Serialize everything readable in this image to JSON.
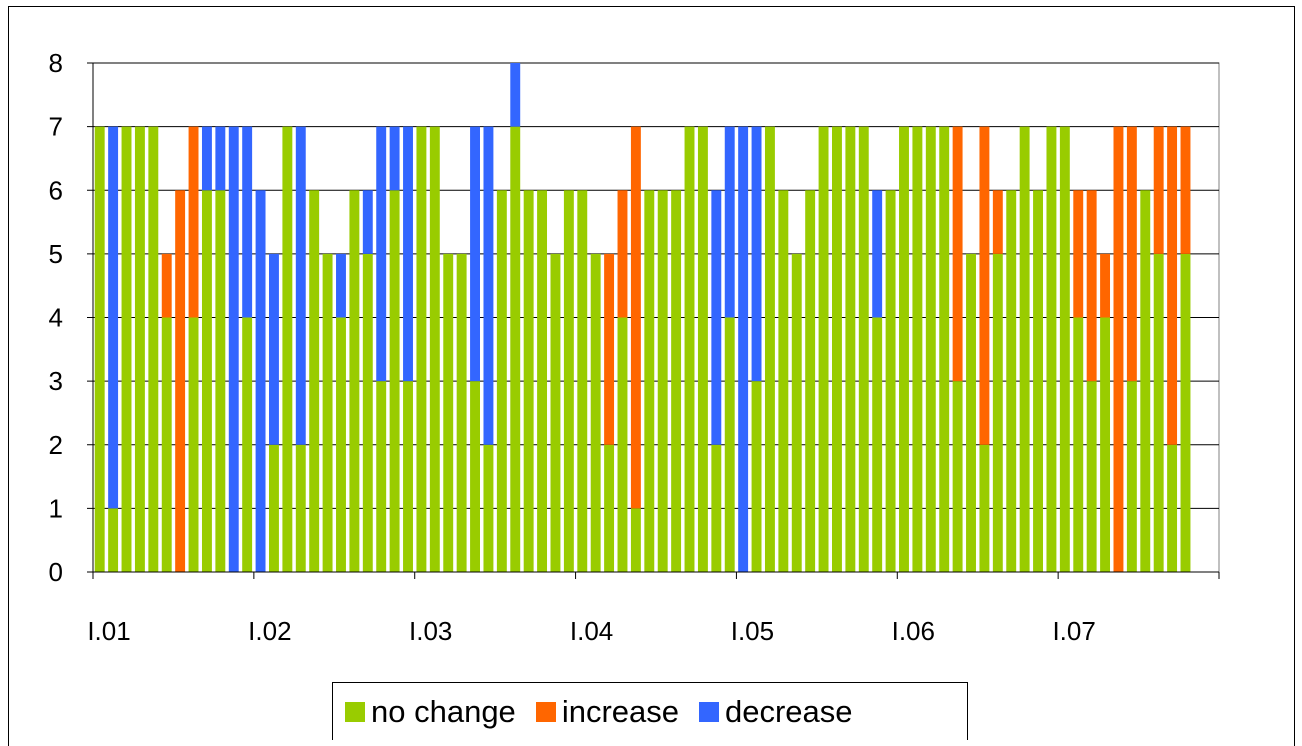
{
  "chart_data": {
    "type": "bar",
    "stacked": true,
    "ylim": [
      0,
      8
    ],
    "y_ticks": [
      "0",
      "1",
      "2",
      "3",
      "4",
      "5",
      "6",
      "7",
      "8"
    ],
    "x_tick_labels": [
      "I.01",
      "I.02",
      "I.03",
      "I.04",
      "I.05",
      "I.06",
      "I.07"
    ],
    "x_tick_positions": [
      0,
      12,
      24,
      36,
      48,
      60,
      72
    ],
    "n_categories": 84,
    "grid": "horizontal",
    "legend_position": "bottom",
    "colors": {
      "no change": "#99CC00",
      "increase": "#FF6600",
      "decrease": "#3366FF"
    },
    "series": [
      {
        "name": "no change",
        "values": [
          7,
          1,
          7,
          7,
          7,
          4,
          0,
          4,
          6,
          6,
          0,
          4,
          0,
          2,
          7,
          2,
          6,
          5,
          4,
          6,
          5,
          3,
          6,
          3,
          7,
          7,
          5,
          5,
          3,
          2,
          6,
          7,
          6,
          6,
          5,
          6,
          6,
          5,
          2,
          4,
          1,
          6,
          6,
          6,
          7,
          7,
          2,
          4,
          0,
          3,
          7,
          6,
          5,
          6,
          7,
          7,
          7,
          7,
          4,
          6,
          7,
          7,
          7,
          7,
          3,
          5,
          2,
          5,
          6,
          7,
          6,
          7,
          7,
          4,
          3,
          4,
          0,
          3,
          6,
          5,
          2,
          5,
          0,
          0
        ]
      },
      {
        "name": "increase",
        "values": [
          0,
          0,
          0,
          0,
          0,
          1,
          6,
          3,
          0,
          0,
          0,
          0,
          0,
          0,
          0,
          0,
          0,
          0,
          0,
          0,
          0,
          0,
          0,
          0,
          0,
          0,
          0,
          0,
          0,
          0,
          0,
          0,
          0,
          0,
          0,
          0,
          0,
          0,
          3,
          2,
          6,
          0,
          0,
          0,
          0,
          0,
          0,
          0,
          0,
          0,
          0,
          0,
          0,
          0,
          0,
          0,
          0,
          0,
          0,
          0,
          0,
          0,
          0,
          0,
          4,
          0,
          5,
          1,
          0,
          0,
          0,
          0,
          0,
          2,
          3,
          1,
          7,
          4,
          0,
          2,
          5,
          2,
          0,
          0
        ]
      },
      {
        "name": "decrease",
        "values": [
          0,
          6,
          0,
          0,
          0,
          0,
          0,
          0,
          1,
          1,
          7,
          3,
          6,
          3,
          0,
          5,
          0,
          0,
          1,
          0,
          1,
          4,
          1,
          4,
          0,
          0,
          0,
          0,
          4,
          5,
          0,
          1,
          0,
          0,
          0,
          0,
          0,
          0,
          0,
          0,
          0,
          0,
          0,
          0,
          0,
          0,
          4,
          3,
          7,
          4,
          0,
          0,
          0,
          0,
          0,
          0,
          0,
          0,
          2,
          0,
          0,
          0,
          0,
          0,
          0,
          0,
          0,
          0,
          0,
          0,
          0,
          0,
          0,
          0,
          0,
          0,
          0,
          0,
          0,
          0,
          0,
          0,
          0,
          0
        ]
      }
    ]
  }
}
